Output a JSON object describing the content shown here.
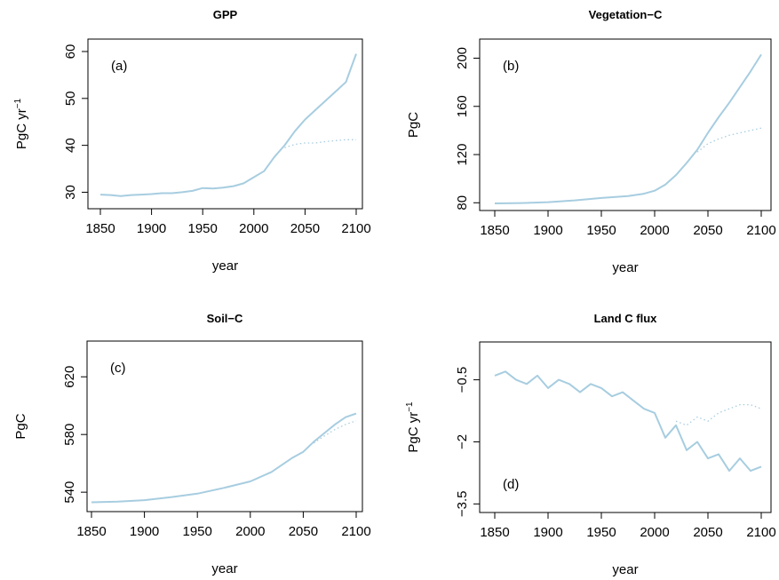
{
  "chart_data": [
    {
      "type": "line",
      "title": "GPP",
      "panel_label": "(a)",
      "xlabel": "year",
      "ylabel": "PgC yr",
      "ylabel_sup": "−1",
      "xlim": [
        1850,
        2100
      ],
      "ylim": [
        28,
        60
      ],
      "xticks": [
        1850,
        1900,
        1950,
        2000,
        2050,
        2100
      ],
      "yticks": [
        30,
        40,
        50,
        60
      ],
      "series": [
        {
          "style": "solid",
          "x": [
            1850,
            1860,
            1870,
            1880,
            1890,
            1900,
            1910,
            1920,
            1930,
            1940,
            1950,
            1960,
            1970,
            1980,
            1990,
            2000,
            2010,
            2020,
            2030,
            2040,
            2050,
            2060,
            2070,
            2080,
            2090,
            2095,
            2100
          ],
          "y": [
            29.5,
            29.4,
            29.2,
            29.4,
            29.5,
            29.6,
            29.8,
            29.8,
            30.0,
            30.3,
            30.9,
            30.8,
            31.0,
            31.3,
            31.9,
            33.2,
            34.5,
            37.5,
            40.0,
            43.0,
            45.5,
            47.5,
            49.5,
            51.5,
            53.5,
            56.5,
            59.5
          ]
        },
        {
          "style": "dotted",
          "x": [
            2030,
            2040,
            2050,
            2060,
            2070,
            2080,
            2090,
            2100
          ],
          "y": [
            39.5,
            40.2,
            40.5,
            40.5,
            40.8,
            41.0,
            41.2,
            41.2
          ]
        }
      ]
    },
    {
      "type": "line",
      "title": "Vegetation−C",
      "panel_label": "(b)",
      "xlabel": "year",
      "ylabel": "PgC",
      "xlim": [
        1850,
        2100
      ],
      "ylim": [
        78,
        207
      ],
      "xticks": [
        1850,
        1900,
        1950,
        2000,
        2050,
        2100
      ],
      "yticks": [
        80,
        120,
        160,
        200
      ],
      "series": [
        {
          "style": "solid",
          "x": [
            1850,
            1875,
            1900,
            1925,
            1950,
            1975,
            1990,
            2000,
            2010,
            2020,
            2030,
            2040,
            2050,
            2060,
            2070,
            2080,
            2090,
            2100
          ],
          "y": [
            79.5,
            79.8,
            80.5,
            82,
            84,
            85.5,
            87.5,
            90,
            95,
            103,
            113,
            124,
            138,
            151,
            163,
            176,
            189,
            203
          ]
        },
        {
          "style": "dotted",
          "x": [
            2040,
            2050,
            2060,
            2070,
            2080,
            2090,
            2100
          ],
          "y": [
            122,
            129,
            133,
            136,
            138,
            140,
            142
          ]
        }
      ]
    },
    {
      "type": "line",
      "title": "Soil−C",
      "panel_label": "(c)",
      "xlabel": "year",
      "ylabel": "PgC",
      "xlim": [
        1850,
        2100
      ],
      "ylim": [
        529,
        638
      ],
      "xticks": [
        1850,
        1900,
        1950,
        2000,
        2050,
        2100
      ],
      "yticks": [
        540,
        580,
        620
      ],
      "series": [
        {
          "style": "solid",
          "x": [
            1850,
            1875,
            1900,
            1925,
            1950,
            1975,
            2000,
            2020,
            2040,
            2050,
            2060,
            2070,
            2080,
            2090,
            2100
          ],
          "y": [
            533,
            533.5,
            534.5,
            536.5,
            539,
            543,
            547.5,
            554,
            564,
            568,
            575,
            581,
            587,
            592,
            594.5
          ]
        },
        {
          "style": "dotted",
          "x": [
            2060,
            2070,
            2080,
            2090,
            2100
          ],
          "y": [
            574,
            579,
            583.5,
            587,
            589.5
          ]
        }
      ]
    },
    {
      "type": "line",
      "title": "Land C flux",
      "panel_label": "(d)",
      "xlabel": "year",
      "ylabel": "PgC yr",
      "ylabel_sup": "−1",
      "xlim": [
        1850,
        2100
      ],
      "ylim": [
        -3.6,
        0.2
      ],
      "xticks": [
        1850,
        1900,
        1950,
        2000,
        2050,
        2100
      ],
      "yticks": [
        -0.5,
        -2.0,
        -3.5
      ],
      "series": [
        {
          "style": "solid",
          "x": [
            1850,
            1860,
            1870,
            1880,
            1890,
            1900,
            1910,
            1920,
            1930,
            1940,
            1950,
            1960,
            1970,
            1980,
            1990,
            2000,
            2010,
            2020,
            2030,
            2040,
            2050,
            2060,
            2070,
            2080,
            2090,
            2100
          ],
          "y": [
            -0.4,
            -0.3,
            -0.5,
            -0.6,
            -0.4,
            -0.7,
            -0.5,
            -0.6,
            -0.8,
            -0.6,
            -0.7,
            -0.9,
            -0.8,
            -1.0,
            -1.2,
            -1.3,
            -1.9,
            -1.6,
            -2.2,
            -2.0,
            -2.4,
            -2.3,
            -2.7,
            -2.4,
            -2.7,
            -2.6
          ]
        },
        {
          "style": "dotted",
          "x": [
            2020,
            2030,
            2040,
            2050,
            2060,
            2070,
            2080,
            2090,
            2100
          ],
          "y": [
            -1.5,
            -1.6,
            -1.4,
            -1.5,
            -1.3,
            -1.2,
            -1.1,
            -1.1,
            -1.2
          ]
        }
      ]
    }
  ],
  "colors": {
    "line": "#a7cde0",
    "axis": "#000000"
  }
}
